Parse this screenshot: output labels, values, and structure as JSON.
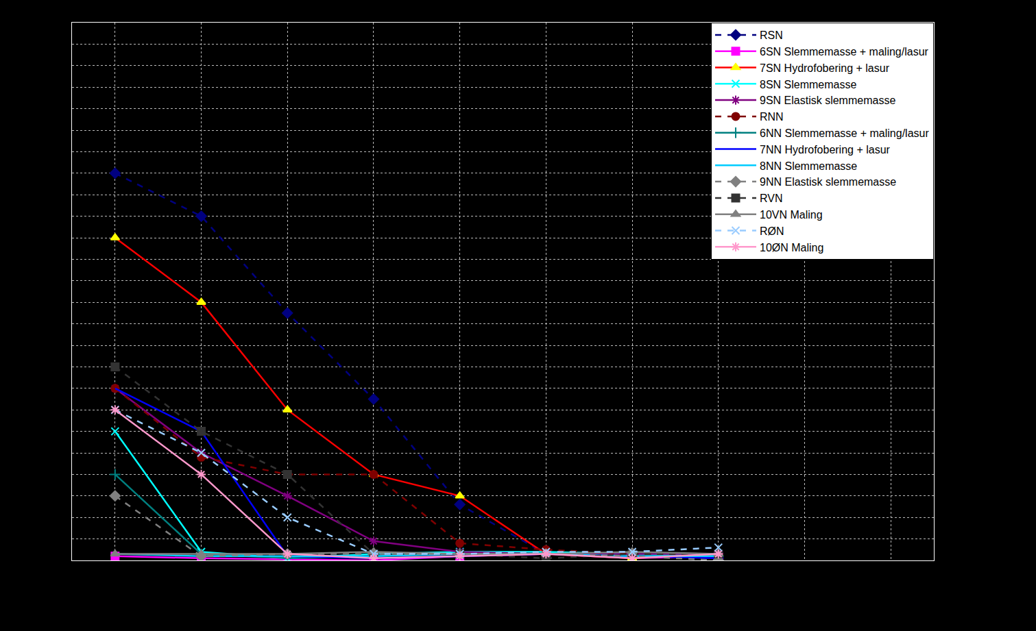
{
  "chart_data": {
    "type": "line",
    "x": [
      1,
      2,
      3,
      4,
      5,
      6,
      7,
      8
    ],
    "xlim": [
      0.5,
      10.5
    ],
    "xticks": [
      1,
      2,
      3,
      4,
      5,
      6,
      7,
      8,
      9,
      10
    ],
    "ylim": [
      0,
      25
    ],
    "yticks": [
      0,
      1,
      2,
      3,
      4,
      5,
      6,
      7,
      8,
      9,
      10,
      11,
      12,
      13,
      14,
      15,
      16,
      17,
      18,
      19,
      20,
      21,
      22,
      23,
      24,
      25
    ],
    "grid": true,
    "legend": "upper right",
    "tick_labels": false,
    "series": [
      {
        "name": "RSN",
        "color": "#000080",
        "marker": "diamond",
        "line_style": "dash",
        "values": [
          18,
          16,
          11.5,
          7.5,
          2.6,
          0.3,
          0.2,
          0.1
        ]
      },
      {
        "name": "6SN Slemmemasse + maling/lasur",
        "color": "#ff00ff",
        "marker": "square",
        "line_style": "solid",
        "values": [
          0.2,
          0.1,
          0.05,
          0,
          0.2,
          0.3,
          0.1,
          0.2
        ]
      },
      {
        "name": "7SN Hydrofobering + lasur",
        "color": "#ff0000",
        "marker": "triangle",
        "line_style": "solid",
        "values": [
          15,
          12,
          7,
          4,
          3,
          0.3,
          0.1,
          0.3
        ]
      },
      {
        "name": "8SN Slemmemasse",
        "color": "#00ffff",
        "marker": "x",
        "line_style": "solid",
        "values": [
          6,
          0.4,
          0.1,
          0.3,
          0.4,
          0.4,
          0.3,
          0.2
        ]
      },
      {
        "name": "9SN Elastisk slemmemasse",
        "color": "#800080",
        "marker": "asterisk",
        "line_style": "solid",
        "values": [
          8,
          5,
          3,
          0.9,
          0.4,
          0.3,
          0.3,
          0.3
        ]
      },
      {
        "name": "RNN",
        "color": "#800000",
        "marker": "circle",
        "line_style": "dash",
        "values": [
          8,
          4.8,
          4,
          4,
          0.8,
          0.5,
          0.3,
          0.3
        ]
      },
      {
        "name": "6NN Slemmemasse + maling/lasur",
        "color": "#008080",
        "marker": "cross",
        "line_style": "solid",
        "values": [
          4,
          0.3,
          0.1,
          0.2,
          0.3,
          0.3,
          0.2,
          0.2
        ]
      },
      {
        "name": "7NN Hydrofobering + lasur",
        "color": "#0000ff",
        "marker": "none",
        "line_style": "solid",
        "values": [
          8,
          6,
          0.2,
          0.1,
          0.2,
          0.3,
          0.2,
          0.1
        ]
      },
      {
        "name": "8NN Slemmemasse",
        "color": "#00ccff",
        "marker": "none",
        "line_style": "solid",
        "values": [
          0.3,
          0.2,
          0.2,
          0.2,
          0.3,
          0.3,
          0.2,
          0.2
        ]
      },
      {
        "name": "9NN Elastisk slemmemasse",
        "color": "#808080",
        "marker": "diamond",
        "line_style": "dash",
        "values": [
          3,
          0.2,
          0.3,
          0.3,
          0.3,
          0.3,
          0.2,
          0
        ]
      },
      {
        "name": "RVN",
        "color": "#333333",
        "marker": "square",
        "line_style": "dash",
        "values": [
          9,
          6,
          4,
          0.3,
          0.3,
          0.1,
          0.3,
          0.3
        ]
      },
      {
        "name": "10VN Maling",
        "color": "#808080",
        "marker": "triangle",
        "line_style": "solid",
        "values": [
          0.3,
          0.3,
          0.3,
          0.4,
          0.3,
          0.3,
          0.4,
          0.3
        ]
      },
      {
        "name": "RØN",
        "color": "#99ccff",
        "marker": "x",
        "line_style": "dash",
        "values": [
          7,
          5,
          2,
          0.3,
          0.3,
          0.4,
          0.4,
          0.6
        ]
      },
      {
        "name": "10ØN Maling",
        "color": "#ff99cc",
        "marker": "asterisk",
        "line_style": "solid",
        "values": [
          7,
          4,
          0.3,
          0.1,
          0.2,
          0.3,
          0.1,
          0.3
        ]
      }
    ]
  }
}
